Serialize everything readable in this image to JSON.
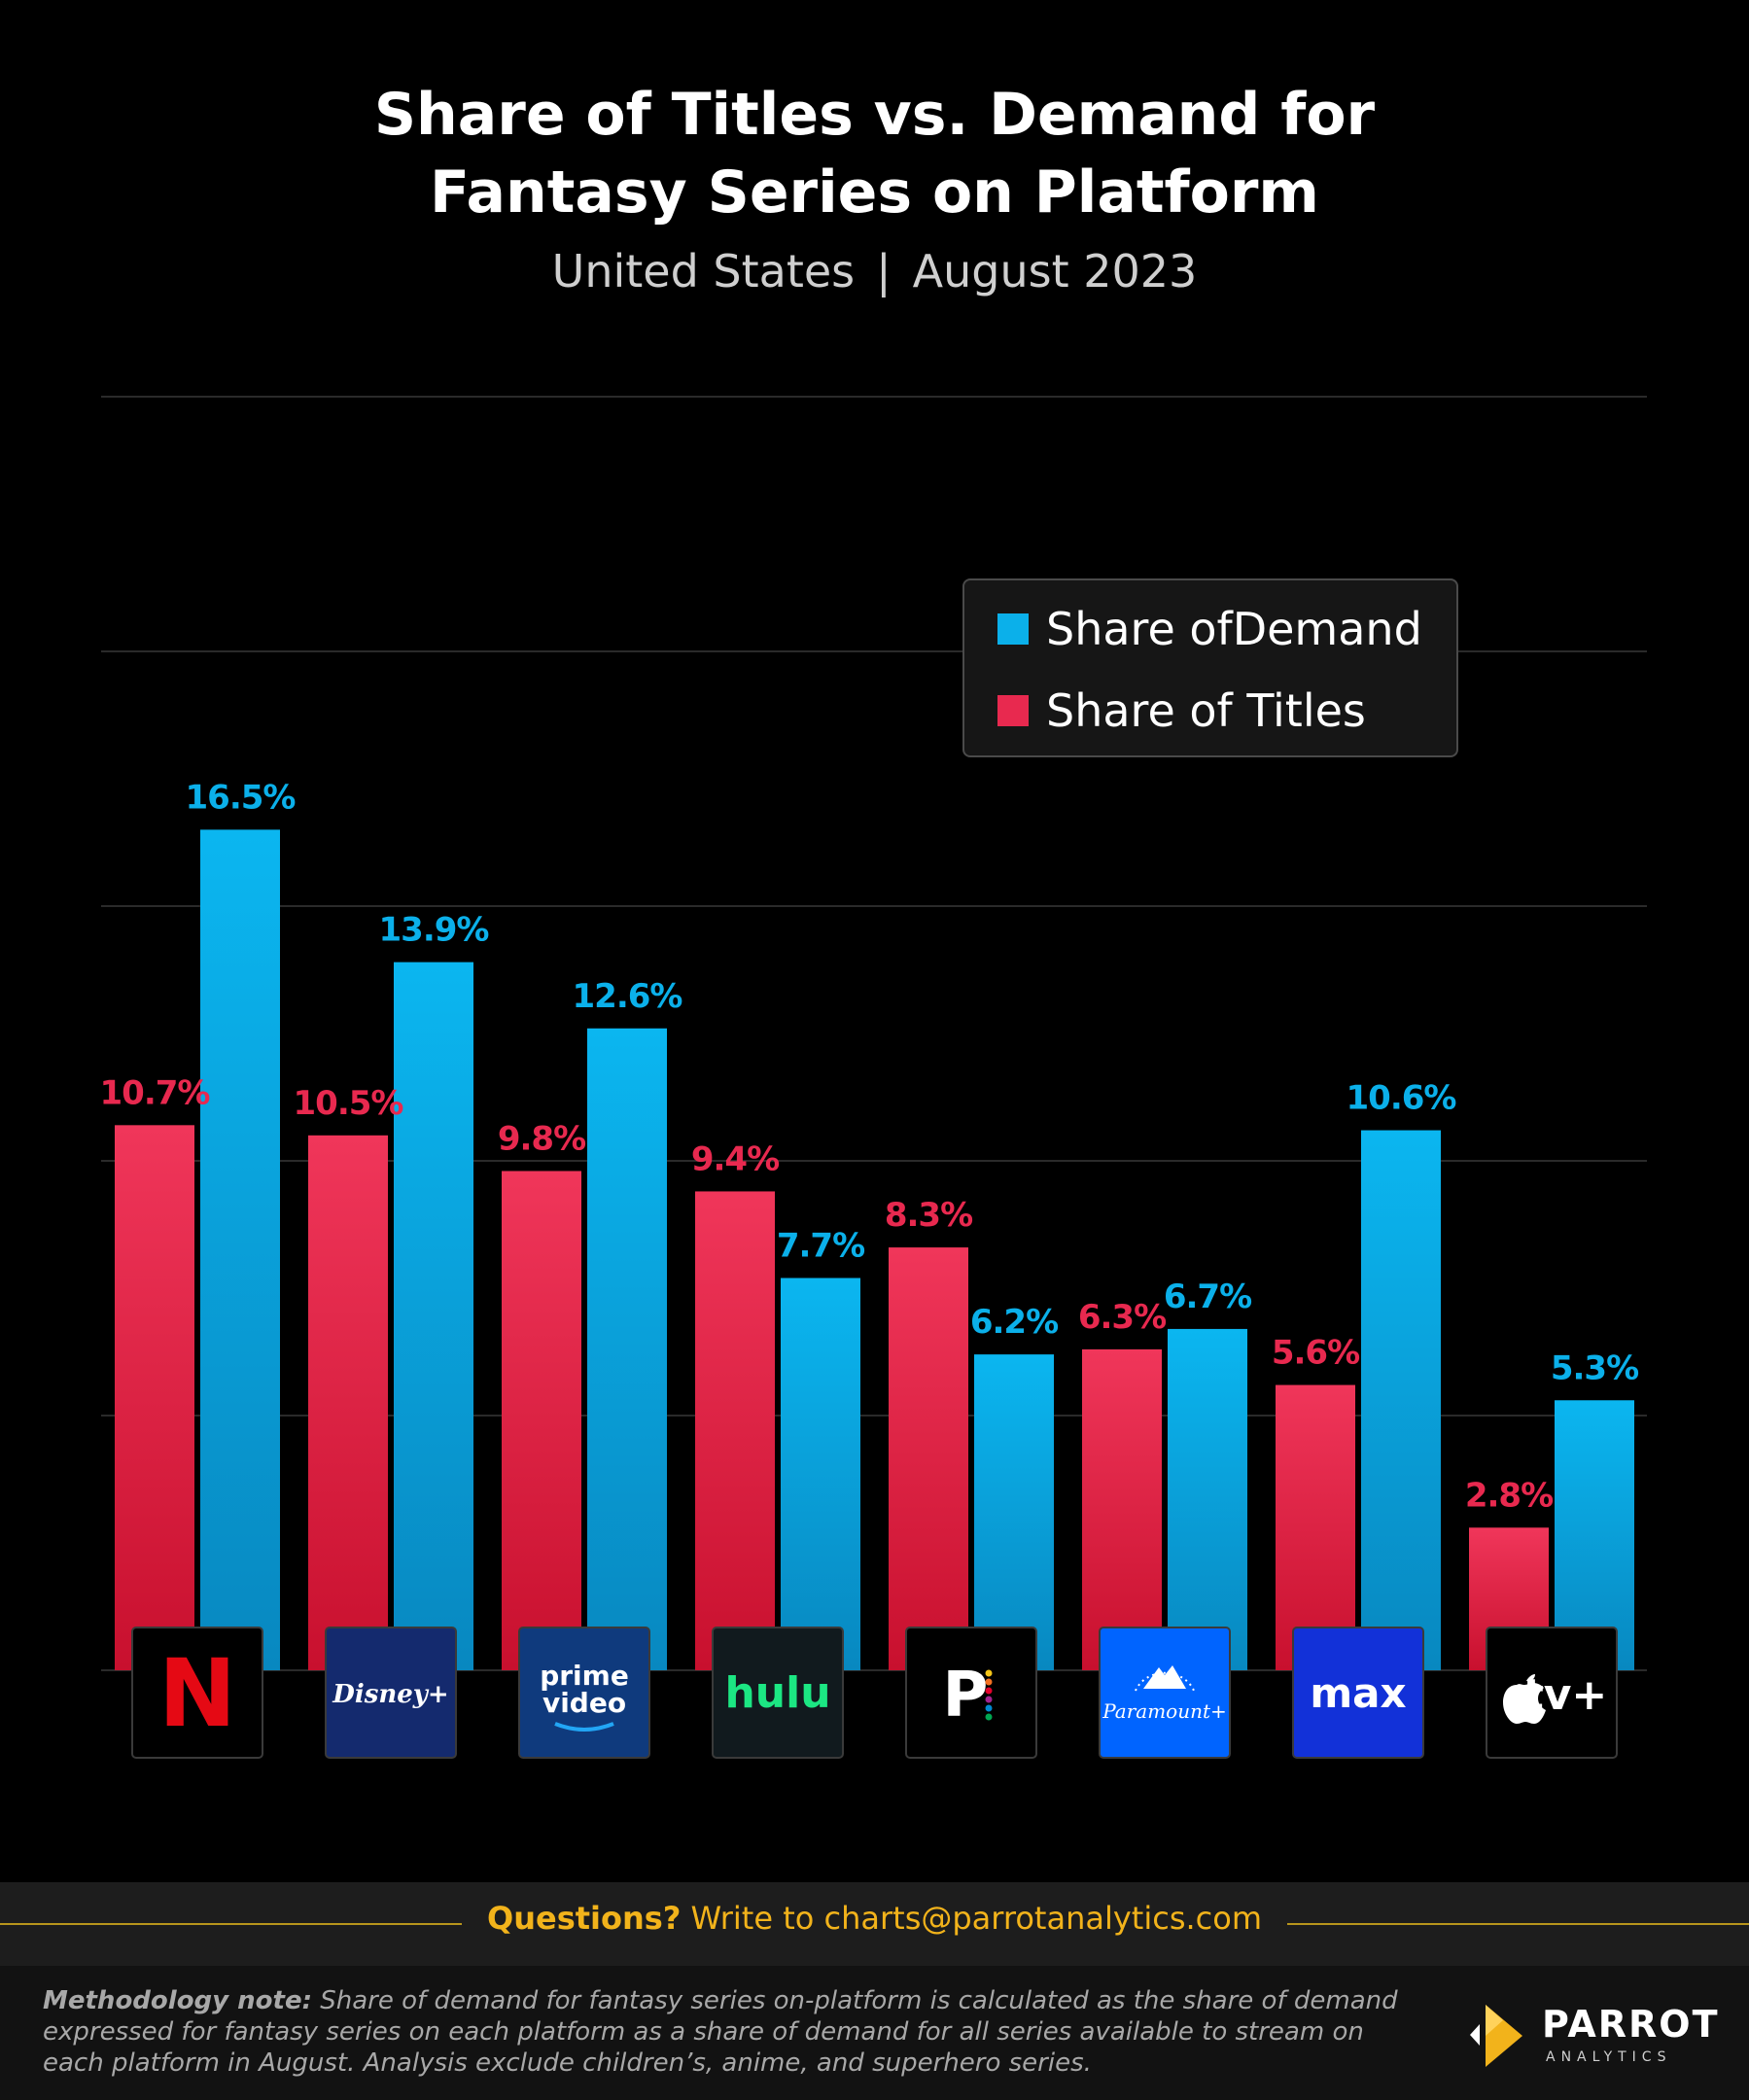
{
  "header": {
    "title_line1": "Share of Titles vs. Demand for",
    "title_line2": "Fantasy Series on Platform",
    "region": "United States",
    "separator": "|",
    "period": "August 2023"
  },
  "colors": {
    "titles": "#e8294f",
    "demand": "#0bb0ea",
    "grid": "#2a2a2a",
    "footer_accent": "#f2b31b"
  },
  "chart_data": {
    "type": "bar",
    "title": "Share of Titles vs. Demand for Fantasy Series on Platform",
    "subtitle": "United States | August 2023",
    "categories": [
      "Netflix",
      "Disney+",
      "Prime Video",
      "Hulu",
      "Peacock",
      "Paramount+",
      "Max",
      "Apple TV+"
    ],
    "series": [
      {
        "name": "Share of Titles",
        "values": [
          10.7,
          10.5,
          9.8,
          9.4,
          8.3,
          6.3,
          5.6,
          2.8
        ]
      },
      {
        "name": "Share ofDemand",
        "values": [
          16.5,
          13.9,
          12.6,
          7.7,
          6.2,
          6.7,
          10.6,
          5.3
        ]
      }
    ],
    "ylim": [
      0,
      25
    ],
    "gridlines": [
      0,
      5,
      10,
      15,
      20,
      25
    ],
    "value_suffix": "%",
    "xlabel": "",
    "ylabel": "",
    "legend_position": "top-right",
    "legend": [
      "Share ofDemand",
      "Share of Titles"
    ]
  },
  "logos": [
    {
      "name": "netflix",
      "text": "N",
      "bg": "#000000",
      "fg": "#e50914"
    },
    {
      "name": "disney-plus",
      "text": "Disney+",
      "bg": "#142a6e",
      "fg": "#ffffff"
    },
    {
      "name": "prime-video",
      "text1": "prime",
      "text2": "video",
      "bg": "#0f3a7d",
      "fg": "#ffffff"
    },
    {
      "name": "hulu",
      "text": "hulu",
      "bg": "#111a1e",
      "fg": "#1ce783"
    },
    {
      "name": "peacock",
      "text": "P",
      "bg": "#000000",
      "fg": "#ffffff"
    },
    {
      "name": "paramount-plus",
      "text": "Paramount+",
      "bg": "#0064ff",
      "fg": "#ffffff"
    },
    {
      "name": "max",
      "text": "max",
      "bg": "#1231d8",
      "fg": "#ffffff"
    },
    {
      "name": "apple-tv-plus",
      "text": "tv+",
      "bg": "#000000",
      "fg": "#ffffff"
    }
  ],
  "footer": {
    "questions_label": "Questions?",
    "questions_text": " Write to charts@parrotanalytics.com",
    "method_label": "Methodology note:",
    "method_text": " Share of demand for fantasy series on-platform is calculated as the share of demand expressed for fantasy series on each platform as a share of demand for all series available to stream on each platform in August.  Analysis exclude children’s, anime, and superhero series.",
    "brand": "PARROT",
    "brand_sub": "ANALYTICS"
  }
}
